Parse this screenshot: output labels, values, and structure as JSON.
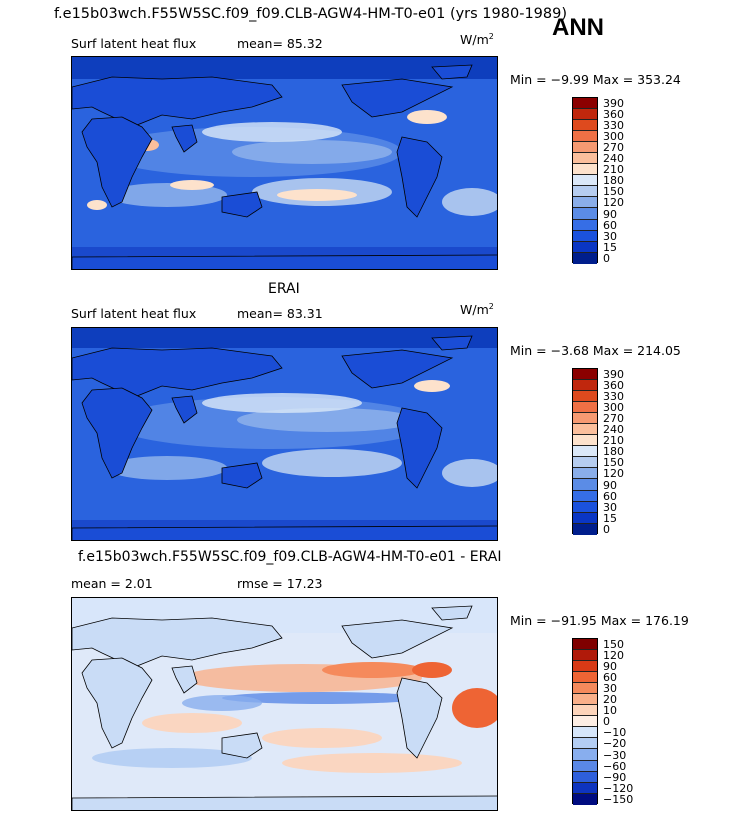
{
  "header": {
    "title": "f.e15b03wch.F55W5SC.f09_f09.CLB-AGW4-HM-T0-e01 (yrs 1980-1989)",
    "season": "ANN"
  },
  "panels": [
    {
      "var_label": "Surf latent heat flux",
      "stat_label": "mean=  85.32",
      "units_base": "W/m",
      "units_exp": "2",
      "minmax": "Min =  −9.99 Max = 353.24",
      "colorbar": {
        "levels": [
          "390",
          "360",
          "330",
          "300",
          "270",
          "240",
          "210",
          "180",
          "150",
          "120",
          "90",
          "60",
          "30",
          "15",
          "0"
        ],
        "colors": [
          "#8b0000",
          "#c0270d",
          "#de4a1e",
          "#ef7045",
          "#f69a72",
          "#fbbf9c",
          "#fde2cc",
          "#dbe8f8",
          "#b6cdf0",
          "#8aaeea",
          "#5b8ce6",
          "#366ee6",
          "#1b52dd",
          "#0a36c4",
          "#001e8c"
        ]
      }
    },
    {
      "title": "ERAI",
      "var_label": "Surf latent heat flux",
      "stat_label": "mean=  83.31",
      "units_base": "W/m",
      "units_exp": "2",
      "minmax": "Min =  −3.68 Max = 214.05",
      "colorbar": {
        "levels": [
          "390",
          "360",
          "330",
          "300",
          "270",
          "240",
          "210",
          "180",
          "150",
          "120",
          "90",
          "60",
          "30",
          "15",
          "0"
        ],
        "colors": [
          "#8b0000",
          "#c0270d",
          "#de4a1e",
          "#ef7045",
          "#f69a72",
          "#fbbf9c",
          "#fde2cc",
          "#dbe8f8",
          "#b6cdf0",
          "#8aaeea",
          "#5b8ce6",
          "#366ee6",
          "#1b52dd",
          "#0a36c4",
          "#001e8c"
        ]
      }
    },
    {
      "title": "f.e15b03wch.F55W5SC.f09_f09.CLB-AGW4-HM-T0-e01 - ERAI",
      "stat_label": "mean =   2.01",
      "rmse_label": "rmse =  17.23",
      "minmax": "Min = −91.95 Max = 176.19",
      "colorbar": {
        "levels": [
          "150",
          "120",
          "90",
          "60",
          "30",
          "20",
          "10",
          "0",
          "−10",
          "−20",
          "−30",
          "−60",
          "−90",
          "−120",
          "−150"
        ],
        "colors": [
          "#7f0000",
          "#b01a0a",
          "#d83a16",
          "#ee6434",
          "#f58a5c",
          "#fab08a",
          "#fdd4ba",
          "#fdeee4",
          "#d6e6fa",
          "#b3cdf3",
          "#88aeee",
          "#5a88e6",
          "#2e5fdb",
          "#0e34bf",
          "#000c80"
        ]
      }
    }
  ]
}
